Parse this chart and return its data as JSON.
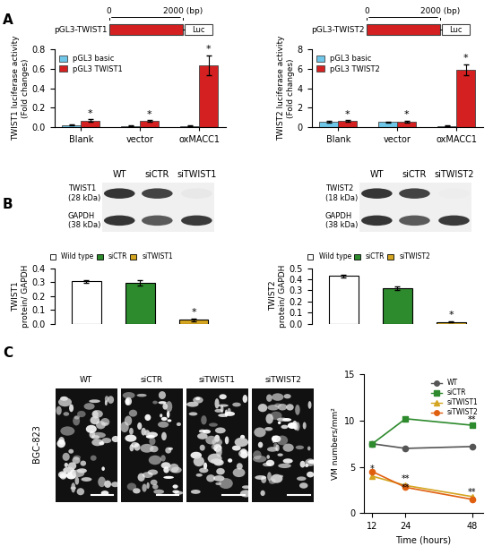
{
  "panel_A_left": {
    "ylabel": "TWIST1 luciferase activity\n(Fold changes)",
    "categories": [
      "Blank",
      "vector",
      "oxMACC1"
    ],
    "basic_values": [
      0.02,
      0.01,
      0.01
    ],
    "basic_errors": [
      0.005,
      0.005,
      0.003
    ],
    "twist_values": [
      0.065,
      0.06,
      0.64
    ],
    "twist_errors": [
      0.015,
      0.01,
      0.1
    ],
    "ylim": [
      0,
      0.8
    ],
    "yticks": [
      0.0,
      0.2,
      0.4,
      0.6,
      0.8
    ],
    "color_basic": "#6ec6e8",
    "color_twist": "#d42020",
    "legend_basic": "pGL3 basic",
    "legend_twist": "pGL3 TWIST1",
    "schema_label": "pGL3-TWIST1",
    "schema_bp_label": "2000 (bp)"
  },
  "panel_A_right": {
    "ylabel": "TWIST2 luciferase activity\n(Fold changes)",
    "categories": [
      "Blank",
      "vector",
      "oxMACC1"
    ],
    "basic_values": [
      0.55,
      0.5,
      0.12
    ],
    "basic_errors": [
      0.07,
      0.06,
      0.02
    ],
    "twist_values": [
      0.6,
      0.55,
      5.95
    ],
    "twist_errors": [
      0.1,
      0.09,
      0.55
    ],
    "ylim": [
      0,
      8
    ],
    "yticks": [
      0,
      2,
      4,
      6,
      8
    ],
    "color_basic": "#6ec6e8",
    "color_twist": "#d42020",
    "legend_basic": "pGL3 basic",
    "legend_twist": "pGL3 TWIST2",
    "schema_label": "pGL3-TWIST2",
    "schema_bp_label": "2000 (bp)"
  },
  "panel_B_left": {
    "categories": [
      "Wild type",
      "siCTR",
      "siTWIST1"
    ],
    "values": [
      0.305,
      0.295,
      0.03
    ],
    "errors": [
      0.012,
      0.018,
      0.01
    ],
    "colors": [
      "#ffffff",
      "#2d8a2d",
      "#d4a520"
    ],
    "ylabel": "TWIST1\nprotein/ GAPDH",
    "ylim": [
      0.0,
      0.4
    ],
    "yticks": [
      0.0,
      0.1,
      0.2,
      0.3,
      0.4
    ],
    "wb_labels": [
      "TWIST1\n(28 kDa)",
      "GAPDH\n(38 kDa)"
    ],
    "wb_cols": [
      "WT",
      "siCTR",
      "siTWIST1"
    ],
    "wb_intensity_row0": [
      0.88,
      0.82,
      0.1
    ],
    "wb_intensity_row1": [
      0.88,
      0.72,
      0.86
    ]
  },
  "panel_B_right": {
    "categories": [
      "Wild type",
      "siCTR",
      "siTWIST2"
    ],
    "values": [
      0.43,
      0.32,
      0.018
    ],
    "errors": [
      0.012,
      0.015,
      0.005
    ],
    "colors": [
      "#ffffff",
      "#2d8a2d",
      "#d4a520"
    ],
    "ylabel": "TWIST2\nprotein/ GAPDH",
    "ylim": [
      0.0,
      0.5
    ],
    "yticks": [
      0.0,
      0.1,
      0.2,
      0.3,
      0.4,
      0.5
    ],
    "wb_labels": [
      "TWIST2\n(18 kDa)",
      "GAPDH\n(38 kDa)"
    ],
    "wb_cols": [
      "WT",
      "siCTR",
      "siTWIST2"
    ],
    "wb_intensity_row0": [
      0.88,
      0.82,
      0.08
    ],
    "wb_intensity_row1": [
      0.88,
      0.72,
      0.86
    ]
  },
  "panel_C_line": {
    "timepoints": [
      12,
      24,
      48
    ],
    "series": {
      "WT": {
        "values": [
          7.5,
          7.0,
          7.2
        ],
        "color": "#555555",
        "marker": "o",
        "ls": "-",
        "mfc": "#555555"
      },
      "siCTR": {
        "values": [
          7.5,
          10.2,
          9.5
        ],
        "color": "#2d8a2d",
        "marker": "s",
        "ls": "-",
        "mfc": "#2d8a2d"
      },
      "siTWIST1": {
        "values": [
          4.0,
          3.0,
          1.8
        ],
        "color": "#d4a520",
        "marker": "^",
        "ls": "-",
        "mfc": "#d4a520"
      },
      "siTWIST2": {
        "values": [
          4.5,
          2.8,
          1.5
        ],
        "color": "#e06010",
        "marker": "o",
        "ls": "-",
        "mfc": "#e06010"
      }
    },
    "ylabel": "VM numbers/mm²",
    "xlabel": "Time (hours)",
    "ylim": [
      0,
      15
    ],
    "yticks": [
      0,
      5,
      10,
      15
    ],
    "bgc823_label": "BGC-823"
  },
  "colors": {
    "background": "#ffffff",
    "text": "#000000"
  }
}
